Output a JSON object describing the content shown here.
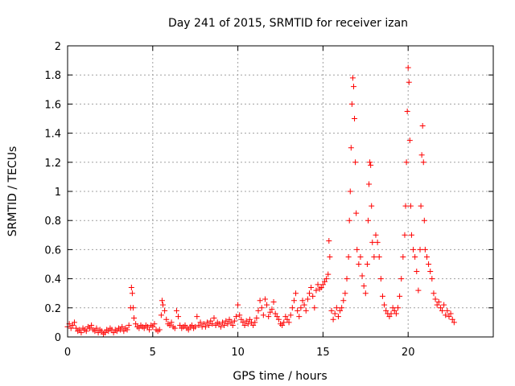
{
  "chart_data": {
    "type": "scatter",
    "title": "Day 241 of 2015, SRMTID for receiver izan",
    "xlabel": "GPS time / hours",
    "ylabel": "SRMTID / TECUs",
    "xlim": [
      0,
      25
    ],
    "ylim": [
      0,
      2
    ],
    "xticks": [
      0,
      5,
      10,
      15,
      20
    ],
    "xtick_labels": [
      "0",
      "5",
      "10",
      "15",
      "20"
    ],
    "yticks": [
      0,
      0.2,
      0.4,
      0.6,
      0.8,
      1,
      1.2,
      1.4,
      1.6,
      1.8,
      2
    ],
    "ytick_labels": [
      "0",
      "0.2",
      "0.4",
      "0.6",
      "0.8",
      "1",
      "1.2",
      "1.4",
      "1.6",
      "1.8",
      "2"
    ],
    "grid": true,
    "marker": "+",
    "color": "#ff0000",
    "series": [
      {
        "name": "SRMTID",
        "points": [
          [
            0.0,
            0.07
          ],
          [
            0.1,
            0.09
          ],
          [
            0.2,
            0.06
          ],
          [
            0.3,
            0.08
          ],
          [
            0.4,
            0.1
          ],
          [
            0.5,
            0.06
          ],
          [
            0.6,
            0.04
          ],
          [
            0.7,
            0.05
          ],
          [
            0.8,
            0.03
          ],
          [
            0.9,
            0.06
          ],
          [
            1.0,
            0.05
          ],
          [
            1.1,
            0.04
          ],
          [
            1.2,
            0.07
          ],
          [
            1.3,
            0.06
          ],
          [
            1.4,
            0.08
          ],
          [
            1.5,
            0.05
          ],
          [
            1.6,
            0.04
          ],
          [
            1.7,
            0.06
          ],
          [
            1.8,
            0.03
          ],
          [
            1.9,
            0.05
          ],
          [
            2.0,
            0.04
          ],
          [
            2.1,
            0.02
          ],
          [
            2.2,
            0.03
          ],
          [
            2.3,
            0.05
          ],
          [
            2.4,
            0.04
          ],
          [
            2.5,
            0.06
          ],
          [
            2.6,
            0.05
          ],
          [
            2.7,
            0.03
          ],
          [
            2.8,
            0.05
          ],
          [
            2.9,
            0.04
          ],
          [
            3.0,
            0.06
          ],
          [
            3.1,
            0.05
          ],
          [
            3.2,
            0.07
          ],
          [
            3.3,
            0.04
          ],
          [
            3.4,
            0.06
          ],
          [
            3.5,
            0.05
          ],
          [
            3.6,
            0.08
          ],
          [
            3.7,
            0.2
          ],
          [
            3.75,
            0.34
          ],
          [
            3.8,
            0.3
          ],
          [
            3.85,
            0.2
          ],
          [
            3.9,
            0.13
          ],
          [
            4.0,
            0.09
          ],
          [
            4.1,
            0.07
          ],
          [
            4.2,
            0.06
          ],
          [
            4.3,
            0.08
          ],
          [
            4.4,
            0.07
          ],
          [
            4.5,
            0.06
          ],
          [
            4.6,
            0.08
          ],
          [
            4.7,
            0.07
          ],
          [
            4.8,
            0.05
          ],
          [
            4.9,
            0.08
          ],
          [
            5.0,
            0.07
          ],
          [
            5.1,
            0.09
          ],
          [
            5.2,
            0.05
          ],
          [
            5.3,
            0.04
          ],
          [
            5.4,
            0.05
          ],
          [
            5.5,
            0.15
          ],
          [
            5.55,
            0.25
          ],
          [
            5.6,
            0.22
          ],
          [
            5.7,
            0.18
          ],
          [
            5.8,
            0.12
          ],
          [
            5.9,
            0.09
          ],
          [
            6.0,
            0.08
          ],
          [
            6.1,
            0.1
          ],
          [
            6.2,
            0.07
          ],
          [
            6.3,
            0.06
          ],
          [
            6.4,
            0.18
          ],
          [
            6.5,
            0.14
          ],
          [
            6.6,
            0.08
          ],
          [
            6.7,
            0.06
          ],
          [
            6.8,
            0.07
          ],
          [
            6.9,
            0.08
          ],
          [
            7.0,
            0.06
          ],
          [
            7.1,
            0.05
          ],
          [
            7.2,
            0.07
          ],
          [
            7.3,
            0.08
          ],
          [
            7.4,
            0.06
          ],
          [
            7.5,
            0.07
          ],
          [
            7.6,
            0.14
          ],
          [
            7.7,
            0.08
          ],
          [
            7.8,
            0.1
          ],
          [
            7.9,
            0.07
          ],
          [
            8.0,
            0.09
          ],
          [
            8.1,
            0.07
          ],
          [
            8.2,
            0.1
          ],
          [
            8.3,
            0.08
          ],
          [
            8.4,
            0.11
          ],
          [
            8.5,
            0.09
          ],
          [
            8.6,
            0.13
          ],
          [
            8.7,
            0.08
          ],
          [
            8.8,
            0.1
          ],
          [
            8.9,
            0.09
          ],
          [
            9.0,
            0.07
          ],
          [
            9.1,
            0.1
          ],
          [
            9.2,
            0.08
          ],
          [
            9.3,
            0.11
          ],
          [
            9.4,
            0.09
          ],
          [
            9.5,
            0.12
          ],
          [
            9.6,
            0.1
          ],
          [
            9.7,
            0.08
          ],
          [
            9.8,
            0.11
          ],
          [
            9.9,
            0.14
          ],
          [
            10.0,
            0.22
          ],
          [
            10.1,
            0.15
          ],
          [
            10.2,
            0.12
          ],
          [
            10.3,
            0.1
          ],
          [
            10.4,
            0.08
          ],
          [
            10.5,
            0.11
          ],
          [
            10.6,
            0.09
          ],
          [
            10.7,
            0.12
          ],
          [
            10.8,
            0.1
          ],
          [
            10.9,
            0.08
          ],
          [
            11.0,
            0.1
          ],
          [
            11.1,
            0.13
          ],
          [
            11.2,
            0.18
          ],
          [
            11.3,
            0.25
          ],
          [
            11.4,
            0.2
          ],
          [
            11.5,
            0.15
          ],
          [
            11.6,
            0.26
          ],
          [
            11.7,
            0.22
          ],
          [
            11.8,
            0.14
          ],
          [
            11.9,
            0.17
          ],
          [
            12.0,
            0.19
          ],
          [
            12.1,
            0.24
          ],
          [
            12.2,
            0.16
          ],
          [
            12.3,
            0.14
          ],
          [
            12.4,
            0.12
          ],
          [
            12.5,
            0.09
          ],
          [
            12.6,
            0.08
          ],
          [
            12.7,
            0.1
          ],
          [
            12.8,
            0.14
          ],
          [
            12.9,
            0.12
          ],
          [
            13.0,
            0.1
          ],
          [
            13.1,
            0.15
          ],
          [
            13.2,
            0.2
          ],
          [
            13.3,
            0.25
          ],
          [
            13.4,
            0.3
          ],
          [
            13.5,
            0.18
          ],
          [
            13.6,
            0.14
          ],
          [
            13.7,
            0.2
          ],
          [
            13.8,
            0.25
          ],
          [
            13.9,
            0.22
          ],
          [
            14.0,
            0.18
          ],
          [
            14.1,
            0.26
          ],
          [
            14.2,
            0.3
          ],
          [
            14.3,
            0.34
          ],
          [
            14.4,
            0.28
          ],
          [
            14.5,
            0.2
          ],
          [
            14.6,
            0.32
          ],
          [
            14.7,
            0.36
          ],
          [
            14.8,
            0.33
          ],
          [
            14.9,
            0.34
          ],
          [
            15.0,
            0.36
          ],
          [
            15.1,
            0.38
          ],
          [
            15.2,
            0.4
          ],
          [
            15.3,
            0.43
          ],
          [
            15.35,
            0.66
          ],
          [
            15.4,
            0.55
          ],
          [
            15.5,
            0.18
          ],
          [
            15.6,
            0.12
          ],
          [
            15.7,
            0.16
          ],
          [
            15.8,
            0.2
          ],
          [
            15.9,
            0.14
          ],
          [
            16.0,
            0.18
          ],
          [
            16.1,
            0.2
          ],
          [
            16.2,
            0.25
          ],
          [
            16.3,
            0.3
          ],
          [
            16.4,
            0.4
          ],
          [
            16.5,
            0.55
          ],
          [
            16.55,
            0.8
          ],
          [
            16.6,
            1.0
          ],
          [
            16.65,
            1.3
          ],
          [
            16.7,
            1.6
          ],
          [
            16.75,
            1.78
          ],
          [
            16.8,
            1.72
          ],
          [
            16.85,
            1.5
          ],
          [
            16.9,
            1.2
          ],
          [
            16.95,
            0.85
          ],
          [
            17.0,
            0.6
          ],
          [
            17.1,
            0.5
          ],
          [
            17.2,
            0.55
          ],
          [
            17.3,
            0.42
          ],
          [
            17.4,
            0.35
          ],
          [
            17.5,
            0.3
          ],
          [
            17.6,
            0.5
          ],
          [
            17.65,
            0.8
          ],
          [
            17.7,
            1.05
          ],
          [
            17.75,
            1.2
          ],
          [
            17.8,
            1.18
          ],
          [
            17.85,
            0.9
          ],
          [
            17.9,
            0.65
          ],
          [
            18.0,
            0.55
          ],
          [
            18.1,
            0.7
          ],
          [
            18.2,
            0.65
          ],
          [
            18.3,
            0.55
          ],
          [
            18.4,
            0.4
          ],
          [
            18.5,
            0.28
          ],
          [
            18.6,
            0.22
          ],
          [
            18.7,
            0.18
          ],
          [
            18.8,
            0.16
          ],
          [
            18.9,
            0.14
          ],
          [
            19.0,
            0.16
          ],
          [
            19.1,
            0.2
          ],
          [
            19.2,
            0.18
          ],
          [
            19.3,
            0.16
          ],
          [
            19.4,
            0.2
          ],
          [
            19.5,
            0.28
          ],
          [
            19.6,
            0.4
          ],
          [
            19.7,
            0.55
          ],
          [
            19.8,
            0.7
          ],
          [
            19.85,
            0.9
          ],
          [
            19.9,
            1.2
          ],
          [
            19.95,
            1.55
          ],
          [
            20.0,
            1.85
          ],
          [
            20.05,
            1.75
          ],
          [
            20.1,
            1.35
          ],
          [
            20.15,
            0.9
          ],
          [
            20.2,
            0.7
          ],
          [
            20.3,
            0.6
          ],
          [
            20.4,
            0.55
          ],
          [
            20.5,
            0.45
          ],
          [
            20.6,
            0.32
          ],
          [
            20.7,
            0.6
          ],
          [
            20.75,
            0.9
          ],
          [
            20.8,
            1.25
          ],
          [
            20.85,
            1.45
          ],
          [
            20.9,
            1.2
          ],
          [
            20.95,
            0.8
          ],
          [
            21.0,
            0.6
          ],
          [
            21.1,
            0.55
          ],
          [
            21.2,
            0.5
          ],
          [
            21.3,
            0.45
          ],
          [
            21.4,
            0.4
          ],
          [
            21.5,
            0.3
          ],
          [
            21.6,
            0.26
          ],
          [
            21.7,
            0.22
          ],
          [
            21.8,
            0.24
          ],
          [
            21.9,
            0.2
          ],
          [
            22.0,
            0.18
          ],
          [
            22.1,
            0.22
          ],
          [
            22.2,
            0.15
          ],
          [
            22.3,
            0.18
          ],
          [
            22.4,
            0.14
          ],
          [
            22.5,
            0.16
          ],
          [
            22.6,
            0.12
          ],
          [
            22.7,
            0.1
          ]
        ]
      }
    ]
  }
}
